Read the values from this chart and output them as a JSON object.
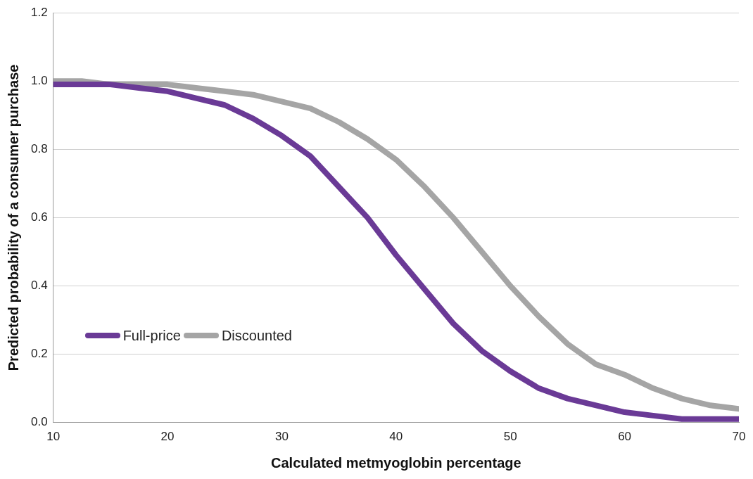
{
  "chart_data": {
    "type": "line",
    "xlabel": "Calculated metmyoglobin percentage",
    "ylabel": "Predicted probability of a consumer purchase",
    "xlim": [
      10,
      70
    ],
    "xticks": [
      10,
      20,
      30,
      40,
      50,
      60,
      70
    ],
    "ylim": [
      0,
      1.2
    ],
    "yticks": [
      {
        "value": 0,
        "label": "0.0"
      },
      {
        "value": 0.2,
        "label": "0.2"
      },
      {
        "value": 0.4,
        "label": "0.4"
      },
      {
        "value": 0.6,
        "label": "0.6"
      },
      {
        "value": 0.8,
        "label": "0.8"
      },
      {
        "value": 1,
        "label": "1.0"
      },
      {
        "value": 1.2,
        "label": "1.2"
      }
    ],
    "x": [
      10,
      12.5,
      15,
      17.5,
      20,
      22.5,
      25,
      27.5,
      30,
      32.5,
      35,
      37.5,
      40,
      42.5,
      45,
      47.5,
      50,
      52.5,
      55,
      57.5,
      60,
      62.5,
      65,
      67.5,
      70
    ],
    "series": [
      {
        "name": "Full-price",
        "color": "#6a3a96",
        "values": [
          0.99,
          0.99,
          0.99,
          0.98,
          0.97,
          0.95,
          0.93,
          0.89,
          0.84,
          0.78,
          0.69,
          0.6,
          0.49,
          0.39,
          0.29,
          0.21,
          0.15,
          0.1,
          0.07,
          0.05,
          0.03,
          0.02,
          0.01,
          0.01,
          0.01
        ]
      },
      {
        "name": "Discounted",
        "color": "#a5a5a5",
        "values": [
          1.0,
          1.0,
          0.99,
          0.99,
          0.99,
          0.98,
          0.97,
          0.96,
          0.94,
          0.92,
          0.88,
          0.83,
          0.77,
          0.69,
          0.6,
          0.5,
          0.4,
          0.31,
          0.23,
          0.17,
          0.14,
          0.1,
          0.07,
          0.05,
          0.04
        ]
      }
    ],
    "grid": "y",
    "legend": "bottom left",
    "marker": "none",
    "line_style": "solid"
  }
}
